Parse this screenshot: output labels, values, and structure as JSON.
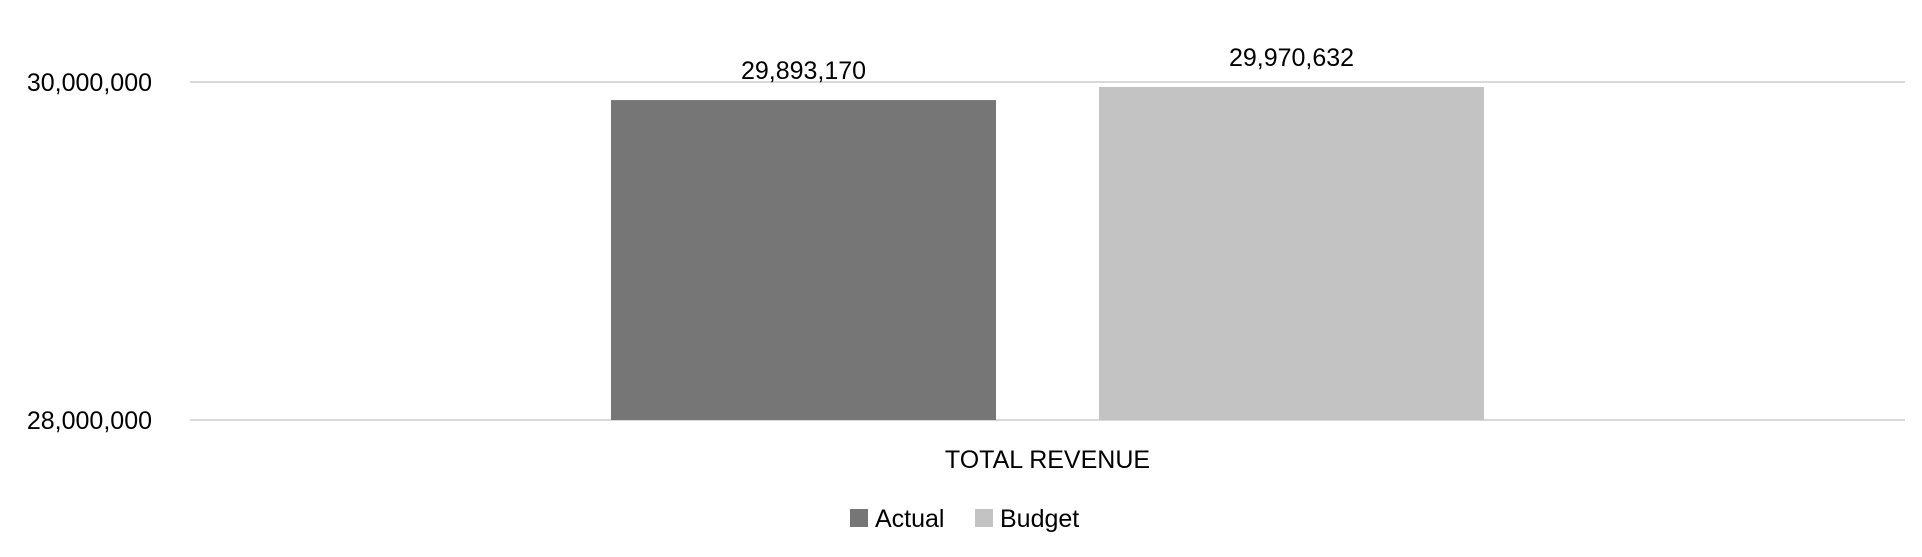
{
  "chart_data": {
    "type": "bar",
    "categories": [
      "TOTAL REVENUE"
    ],
    "series": [
      {
        "name": "Actual",
        "values": [
          29893170
        ],
        "color": "#767676",
        "label": "29,893,170"
      },
      {
        "name": "Budget",
        "values": [
          29970632
        ],
        "color": "#c3c3c3",
        "label": "29,970,632"
      }
    ],
    "ylim": [
      28000000,
      30000000
    ],
    "yticks": [
      28000000,
      30000000
    ],
    "ytick_labels": [
      "28,000,000",
      "30,000,000"
    ],
    "grid": true,
    "legend_position": "bottom"
  }
}
